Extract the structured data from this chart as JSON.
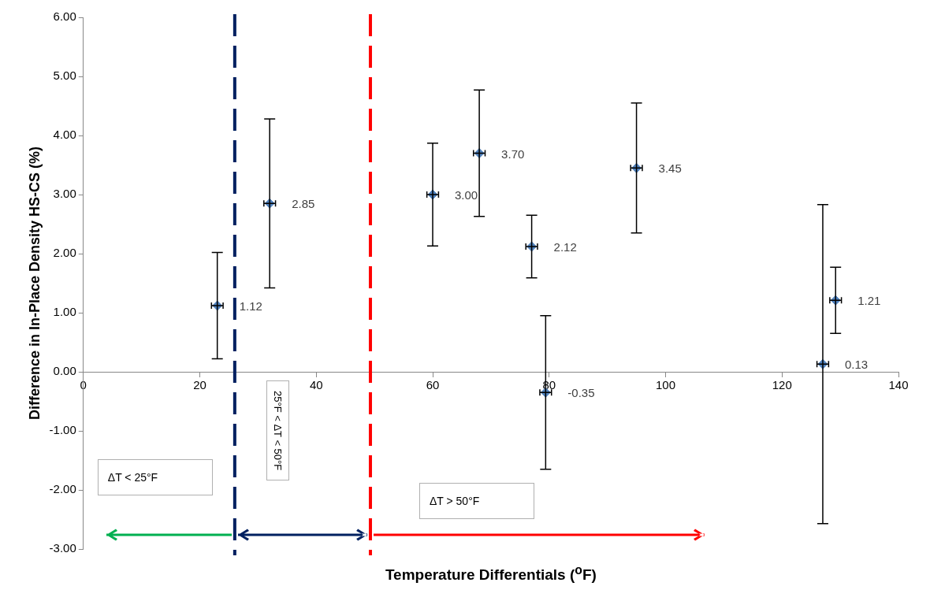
{
  "chart_data": {
    "type": "scatter",
    "xlabel": "Temperature Differentials ($^{o}$F)",
    "ylabel": "Difference in In-Place Density HS-CS (%)",
    "x": [
      23,
      32,
      60,
      68,
      77,
      79.4,
      95,
      127,
      129.2
    ],
    "series": [
      {
        "color": "#4f81bd",
        "values": [
          1.12,
          2.85,
          3.0,
          3.7,
          2.12,
          -0.35,
          3.45,
          0.13,
          1.21
        ],
        "errors": [
          0.9,
          1.43,
          0.87,
          1.07,
          0.53,
          1.3,
          1.1,
          2.7,
          0.56
        ],
        "xerrors": [
          1,
          1,
          1,
          1,
          1,
          1,
          1,
          1,
          1
        ],
        "value_labels": [
          "1.12",
          "2.85",
          "3.00",
          "3.70",
          "2.12",
          "-0.35",
          "3.45",
          "0.13",
          "1.21"
        ]
      }
    ],
    "marker": "diamond",
    "grid": false,
    "xlim": [
      0,
      140
    ],
    "xticks": [
      0,
      20,
      40,
      60,
      80,
      100,
      120,
      140
    ],
    "ylim": [
      -3,
      6
    ],
    "yticks": [
      {
        "value": -3,
        "label": "-3.00"
      },
      {
        "value": -2,
        "label": "-2.00"
      },
      {
        "value": -1,
        "label": "-1.00"
      },
      {
        "value": 0,
        "label": "0.00"
      },
      {
        "value": 1,
        "label": "1.00"
      },
      {
        "value": 2,
        "label": "2.00"
      },
      {
        "value": 3,
        "label": "3.00"
      },
      {
        "value": 4,
        "label": "4.00"
      },
      {
        "value": 5,
        "label": "5.00"
      },
      {
        "value": 6,
        "label": "6.00"
      }
    ],
    "ref_lines": [
      {
        "axis": "x",
        "value": 26,
        "color": "#002060",
        "line_style": "dashed"
      },
      {
        "axis": "x",
        "value": 49.3,
        "color": "#ff0000",
        "line_style": "dashed"
      }
    ],
    "annotations": [
      "ΔT < 25°F",
      "25°F < ΔT < 50°F",
      "ΔT > 50°F"
    ]
  }
}
